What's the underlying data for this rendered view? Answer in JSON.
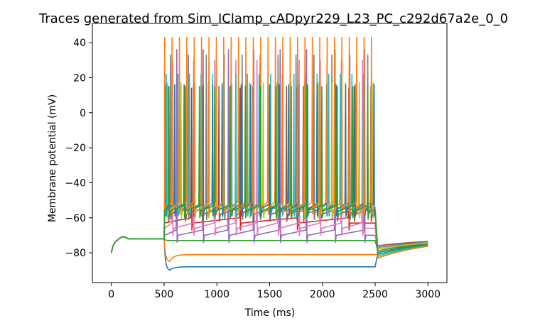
{
  "chart_data": {
    "type": "line",
    "title": "Traces generated from Sim_IClamp_cADpyr229_L23_PC_c292d67a2e_0_0",
    "xlabel": "Time (ms)",
    "ylabel": "Membrane potential (mV)",
    "xlim": [
      -180,
      3180
    ],
    "ylim": [
      -97,
      51
    ],
    "xticks": [
      0,
      500,
      1000,
      1500,
      2000,
      2500,
      3000
    ],
    "yticks": [
      -80,
      -60,
      -40,
      -20,
      0,
      20,
      40
    ],
    "grid": false,
    "legend": "none",
    "stimulus_window_ms": [
      500,
      2500
    ],
    "resting_potential_mv": -72,
    "series": [
      {
        "color": "#1f77b4",
        "kind": "hyperpolarized",
        "sag_min": -90,
        "steady": -88,
        "rebound": -76
      },
      {
        "color": "#ff7f0e",
        "kind": "hyperpolarized",
        "sag_min": -85,
        "steady": -81,
        "rebound": -77
      },
      {
        "color": "#2ca02c",
        "kind": "subthreshold",
        "steady": -73,
        "rebound": -75
      },
      {
        "color": "#d62728",
        "kind": "spiking",
        "plateau": -63,
        "spike_peak": 14,
        "spike_times": [
          760,
          1220,
          1760,
          2250
        ],
        "rebound": -73
      },
      {
        "color": "#9467bd",
        "kind": "spiking",
        "plateau": -70,
        "spike_peak": 36,
        "spike_times": [
          620,
          870,
          1110,
          1350,
          1600,
          1850,
          2120,
          2400
        ],
        "rebound": -73
      },
      {
        "color": "#8c564b",
        "kind": "spiking",
        "plateau": -58,
        "spike_peak": 15,
        "spike_times": [
          540,
          700,
          860,
          1020,
          1180,
          1340,
          1500,
          1660,
          1820,
          1980,
          2140,
          2300,
          2460
        ],
        "rebound": -72
      },
      {
        "color": "#e377c2",
        "kind": "spiking",
        "plateau": -66,
        "spike_peak": 30,
        "spike_times": [
          580,
          780,
          980,
          1180,
          1380,
          1580,
          1780,
          1980,
          2180,
          2380
        ],
        "rebound": -74
      },
      {
        "color": "#7f7f7f",
        "kind": "spiking",
        "plateau": -57,
        "spike_peak": 33,
        "spike_times": [
          560,
          730,
          900,
          1070,
          1240,
          1410,
          1580,
          1750,
          1920,
          2090,
          2260,
          2430
        ],
        "rebound": -73
      },
      {
        "color": "#bcbd22",
        "kind": "spiking",
        "plateau": -56,
        "spike_peak": 17,
        "spike_times": [
          530,
          660,
          790,
          920,
          1050,
          1180,
          1310,
          1440,
          1570,
          1700,
          1830,
          1960,
          2090,
          2220,
          2350,
          2480
        ],
        "rebound": -74
      },
      {
        "color": "#17becf",
        "kind": "spiking",
        "plateau": -55,
        "spike_peak": 22,
        "spike_times": [
          520,
          630,
          740,
          850,
          960,
          1070,
          1180,
          1290,
          1400,
          1510,
          1620,
          1730,
          1840,
          1950,
          2060,
          2170,
          2280,
          2390
        ],
        "rebound": -78
      },
      {
        "color": "#1f77b4",
        "kind": "spiking",
        "plateau": -55,
        "spike_peak": 16,
        "spike_times": [
          510,
          600,
          690,
          780,
          870,
          960,
          1050,
          1140,
          1230,
          1320,
          1410,
          1500,
          1590,
          1680,
          1770,
          1860,
          1950,
          2040,
          2130,
          2220,
          2310,
          2400,
          2490
        ],
        "rebound": -79
      },
      {
        "color": "#ff7f0e",
        "kind": "spiking",
        "plateau": -54,
        "spike_peak": 43,
        "spike_times": [
          505,
          575,
          645,
          715,
          785,
          855,
          925,
          995,
          1065,
          1135,
          1205,
          1275,
          1345,
          1415,
          1485,
          1555,
          1625,
          1695,
          1765,
          1835,
          1905,
          1975,
          2045,
          2115,
          2185,
          2255,
          2325,
          2395,
          2465
        ],
        "rebound": -79
      },
      {
        "color": "#2ca02c",
        "kind": "spiking",
        "plateau": -56,
        "spike_peak": 15,
        "spike_times": [
          545,
          690,
          835,
          980,
          1125,
          1270,
          1415,
          1560,
          1705,
          1850,
          1995,
          2140,
          2285,
          2430
        ],
        "rebound": -77
      }
    ]
  }
}
